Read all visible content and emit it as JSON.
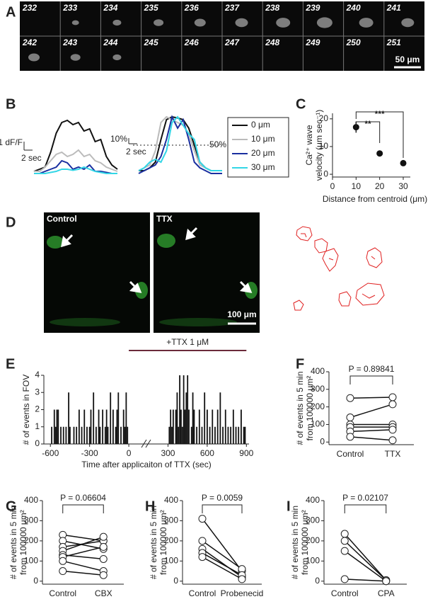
{
  "panel_labels": [
    "A",
    "B",
    "C",
    "D",
    "E",
    "F",
    "G",
    "H",
    "I"
  ],
  "frames": {
    "numbers": [
      232,
      233,
      234,
      235,
      236,
      237,
      238,
      239,
      240,
      241,
      242,
      243,
      244,
      245,
      246,
      247,
      248,
      249,
      250,
      251
    ],
    "scale_bar": "50 μm"
  },
  "images": {
    "labels": [
      "Control",
      "TTX"
    ],
    "scale_bar": "100 μm"
  },
  "chart_data": [
    {
      "type": "line",
      "annotations": {
        "y_scale": "1 dF/F",
        "x_scale": "2 sec"
      },
      "series": [
        {
          "name": "0 μm",
          "color": "#111111",
          "values": [
            0.1,
            0.2,
            0.3,
            1.0,
            1.9,
            2.4,
            2.5,
            2.3,
            2.4,
            2.0,
            2.1,
            1.5,
            1.6,
            0.8,
            0.4,
            0.2
          ]
        },
        {
          "name": "10 μm",
          "color": "#bbbbbb",
          "values": [
            0.1,
            0.1,
            0.3,
            0.6,
            0.9,
            1.0,
            0.8,
            0.9,
            1.1,
            0.8,
            0.9,
            0.6,
            0.5,
            0.3,
            0.2,
            0.1
          ]
        },
        {
          "name": "20 μm",
          "color": "#1a2fa0",
          "values": [
            0,
            0,
            0.1,
            0.2,
            0.3,
            0.6,
            0.5,
            0.2,
            0.3,
            0.2,
            0.4,
            0.1,
            0.1,
            0.05,
            0,
            0
          ]
        },
        {
          "name": "30 μm",
          "color": "#33d6e6",
          "values": [
            0,
            0,
            0,
            0.05,
            0.1,
            0.2,
            0.2,
            0.15,
            0.2,
            0.3,
            0.2,
            0.1,
            0.05,
            0,
            0,
            0
          ]
        }
      ]
    },
    {
      "type": "line",
      "annotations": {
        "y_scale": "10%",
        "x_scale": "2 sec"
      },
      "threshold": {
        "value": 50,
        "label": "50%"
      },
      "series": [
        {
          "color": "#111111",
          "values": [
            5,
            5,
            10,
            20,
            60,
            95,
            100,
            98,
            95,
            80,
            50,
            20,
            10,
            5,
            5,
            5
          ]
        },
        {
          "color": "#bbbbbb",
          "values": [
            5,
            10,
            15,
            40,
            90,
            100,
            95,
            90,
            85,
            70,
            40,
            15,
            10,
            5,
            5,
            5
          ]
        },
        {
          "color": "#1a2fa0",
          "values": [
            0,
            5,
            10,
            15,
            30,
            60,
            100,
            80,
            95,
            60,
            20,
            10,
            5,
            0,
            0,
            0
          ]
        },
        {
          "color": "#33d6e6",
          "values": [
            5,
            10,
            20,
            25,
            20,
            40,
            90,
            100,
            85,
            70,
            60,
            20,
            10,
            5,
            5,
            5
          ]
        }
      ]
    },
    {
      "type": "scatter",
      "x": [
        10,
        20,
        30
      ],
      "values": [
        17,
        7.5,
        4
      ],
      "errors": [
        2,
        1,
        0.8
      ],
      "xlim": [
        0,
        33
      ],
      "xticks": [
        0,
        10,
        20,
        30
      ],
      "ylim": [
        -1,
        22
      ],
      "yticks": [
        0,
        10,
        20
      ],
      "xlabel": "Distance from centroid (μm)",
      "ylabel": [
        "Ca²⁺ wave",
        "velocity (μm sec⁻¹)"
      ],
      "significance": [
        {
          "x": [
            10,
            20
          ],
          "label": "**"
        },
        {
          "x": [
            10,
            30
          ],
          "label": "***"
        }
      ]
    },
    {
      "type": "bar",
      "x": [
        -590,
        -570,
        -560,
        -550,
        -540,
        -520,
        -500,
        -480,
        -460,
        -450,
        -420,
        -400,
        -380,
        -360,
        -340,
        -320,
        -300,
        -290,
        -270,
        -250,
        -230,
        -220,
        -200,
        -180,
        -170,
        -160,
        -140,
        -120,
        -100,
        -90,
        -80,
        -60,
        -40,
        -30,
        -20,
        -10,
        310,
        320,
        330,
        340,
        360,
        370,
        380,
        390,
        400,
        410,
        420,
        430,
        440,
        450,
        460,
        480,
        490,
        500,
        520,
        540,
        560,
        580,
        600,
        620,
        640,
        660,
        680,
        700,
        720,
        740,
        760,
        780,
        800,
        820,
        840,
        860,
        880,
        890
      ],
      "values": [
        1,
        2,
        1,
        2,
        2,
        1,
        1,
        1,
        3,
        1,
        1,
        1,
        2,
        1,
        2,
        1,
        1,
        2,
        3,
        1,
        2,
        1,
        2,
        1,
        2,
        1,
        3,
        2,
        1,
        2,
        3,
        1,
        2,
        1,
        3,
        1,
        1,
        2,
        1,
        2,
        2,
        3,
        1,
        4,
        2,
        1,
        4,
        2,
        3,
        4,
        2,
        1,
        3,
        2,
        1,
        2,
        1,
        3,
        2,
        1,
        2,
        1,
        2,
        3,
        1,
        2,
        1,
        1,
        2,
        1,
        1,
        2,
        1,
        1
      ],
      "xlim": [
        -650,
        920
      ],
      "xticks": [
        -600,
        -300,
        0,
        300,
        600,
        900
      ],
      "ylim": [
        0,
        4
      ],
      "yticks": [
        0,
        1,
        2,
        3,
        4
      ],
      "treatment": {
        "label": "+TTX 1 μM",
        "span": [
          0,
          900
        ]
      },
      "xlabel": "Time after applicaiton of TTX (sec)",
      "ylabel": "# of events in FOV"
    },
    {
      "type": "paired",
      "categories": [
        "Control",
        "TTX"
      ],
      "p_label": "P = 0.89841",
      "ylim": [
        -15,
        400
      ],
      "yticks": [
        0,
        100,
        200,
        300,
        400
      ],
      "ylabel": [
        "# of events in 5 min",
        "from 100000 μm²"
      ],
      "series": [
        {
          "values": [
            250,
            255
          ]
        },
        {
          "values": [
            140,
            215
          ]
        },
        {
          "values": [
            100,
            100
          ]
        },
        {
          "values": [
            85,
            85
          ]
        },
        {
          "values": [
            60,
            70
          ]
        },
        {
          "values": [
            30,
            10
          ]
        }
      ]
    },
    {
      "type": "paired",
      "categories": [
        "Control",
        "CBX"
      ],
      "p_label": "P = 0.06604",
      "ylim": [
        -15,
        400
      ],
      "yticks": [
        0,
        100,
        200,
        300,
        400
      ],
      "ylabel": [
        "# of events in 5 min",
        "from 100000 μm²"
      ],
      "series": [
        {
          "values": [
            230,
            200
          ]
        },
        {
          "values": [
            200,
            160
          ]
        },
        {
          "values": [
            170,
            200
          ]
        },
        {
          "values": [
            150,
            220
          ]
        },
        {
          "values": [
            130,
            110
          ]
        },
        {
          "values": [
            120,
            170
          ]
        },
        {
          "values": [
            100,
            50
          ]
        },
        {
          "values": [
            50,
            30
          ]
        }
      ]
    },
    {
      "type": "paired",
      "categories": [
        "Control",
        "Probenecid"
      ],
      "p_label": "P = 0.0059",
      "ylim": [
        -15,
        400
      ],
      "yticks": [
        0,
        100,
        200,
        300,
        400
      ],
      "ylabel": [
        "# of events in 5 min",
        "from 100000 μm²"
      ],
      "series": [
        {
          "values": [
            310,
            50
          ]
        },
        {
          "values": [
            200,
            60
          ]
        },
        {
          "values": [
            160,
            20
          ]
        },
        {
          "values": [
            140,
            30
          ]
        },
        {
          "values": [
            120,
            10
          ]
        }
      ]
    },
    {
      "type": "paired",
      "categories": [
        "Control",
        "CPA"
      ],
      "p_label": "P = 0.02107",
      "ylim": [
        -15,
        400
      ],
      "yticks": [
        0,
        100,
        200,
        300,
        400
      ],
      "ylabel": [
        "# of events in 5 min",
        "from 100000 μm²"
      ],
      "series": [
        {
          "values": [
            235,
            5
          ]
        },
        {
          "values": [
            200,
            5
          ]
        },
        {
          "values": [
            150,
            0
          ]
        },
        {
          "values": [
            10,
            0
          ]
        }
      ]
    }
  ]
}
